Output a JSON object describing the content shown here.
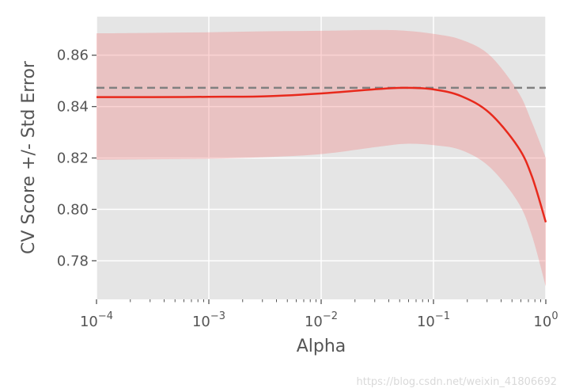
{
  "chart_data": {
    "type": "line",
    "xscale": "log",
    "xlim": [
      0.0001,
      1
    ],
    "ylim": [
      0.765,
      0.875
    ],
    "xlabel": "Alpha",
    "ylabel": "CV Score +/- Std Error",
    "grid": true,
    "x_ticks": [
      {
        "base": "10",
        "exp": "−4"
      },
      {
        "base": "10",
        "exp": "−3"
      },
      {
        "base": "10",
        "exp": "−2"
      },
      {
        "base": "10",
        "exp": "−1"
      },
      {
        "base": "10",
        "exp": "0"
      }
    ],
    "y_ticks": [
      "0.78",
      "0.80",
      "0.82",
      "0.84",
      "0.86"
    ],
    "y_tick_values": [
      0.78,
      0.8,
      0.82,
      0.84,
      0.86
    ],
    "series": [
      {
        "x": [
          0.0001,
          0.000316,
          0.001,
          0.00316,
          0.01,
          0.0316,
          0.0562,
          0.1,
          0.178,
          0.316,
          0.562,
          0.75,
          1.0
        ],
        "y": [
          0.8437,
          0.8437,
          0.8438,
          0.844,
          0.8451,
          0.8468,
          0.8473,
          0.8467,
          0.844,
          0.8375,
          0.8245,
          0.813,
          0.795
        ],
        "upper": [
          0.8685,
          0.8687,
          0.8689,
          0.8693,
          0.8695,
          0.8698,
          0.8695,
          0.8683,
          0.866,
          0.86,
          0.846,
          0.834,
          0.82
        ],
        "lower": [
          0.8193,
          0.8195,
          0.8197,
          0.8203,
          0.8215,
          0.8243,
          0.8255,
          0.825,
          0.823,
          0.8165,
          0.803,
          0.79,
          0.77
        ],
        "color": "#e8291c",
        "band_color": "#f08080"
      }
    ],
    "reference_line": {
      "y": 0.8473,
      "style": "dashed",
      "color": "#808080"
    }
  },
  "watermark": "https://blog.csdn.net/weixin_41806692",
  "colors": {
    "plot_bg": "#e5e5e5",
    "grid": "#ffffff",
    "text": "#555555"
  }
}
